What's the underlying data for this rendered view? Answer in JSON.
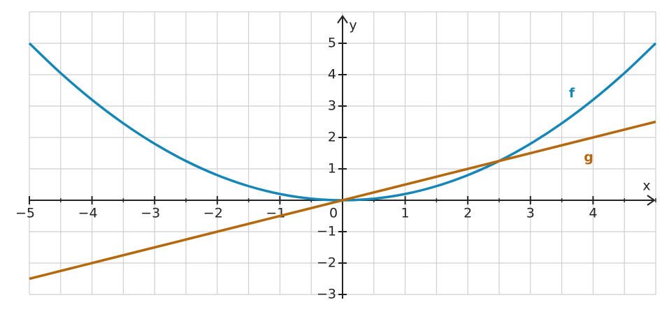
{
  "chart_data": {
    "type": "line",
    "x_label": "x",
    "y_label": "y",
    "x": [
      -5,
      -4.5,
      -4,
      -3.5,
      -3,
      -2.5,
      -2,
      -1.5,
      -1,
      -0.5,
      0,
      0.5,
      1,
      1.5,
      2,
      2.5,
      3,
      3.5,
      4,
      4.5,
      5
    ],
    "series": [
      {
        "name": "f",
        "color": "#1586b6",
        "values": [
          5,
          4.05,
          3.2,
          2.45,
          1.8,
          1.25,
          0.8,
          0.45,
          0.2,
          0.05,
          0,
          0.05,
          0.2,
          0.45,
          0.8,
          1.25,
          1.8,
          2.45,
          3.2,
          4.05,
          5
        ]
      },
      {
        "name": "g",
        "color": "#b5690f",
        "values": [
          -2.5,
          -2.25,
          -2,
          -1.75,
          -1.5,
          -1.25,
          -1,
          -0.75,
          -0.5,
          -0.25,
          0,
          0.25,
          0.5,
          0.75,
          1,
          1.25,
          1.5,
          1.75,
          2,
          2.25,
          2.5
        ]
      }
    ],
    "xlim": [
      -5,
      5
    ],
    "ylim": [
      -3,
      6
    ],
    "xticks": [
      {
        "value": -5,
        "label": "−5"
      },
      {
        "value": -4,
        "label": "−4"
      },
      {
        "value": -3,
        "label": "−3"
      },
      {
        "value": -2,
        "label": "−2"
      },
      {
        "value": -1,
        "label": "−1"
      },
      0,
      1,
      2,
      3,
      4
    ],
    "yticks": [
      {
        "value": -3,
        "label": "−3"
      },
      {
        "value": -2,
        "label": "−2"
      },
      {
        "value": -1,
        "label": "−1"
      },
      1,
      2,
      3,
      4,
      5
    ],
    "grid": true
  }
}
